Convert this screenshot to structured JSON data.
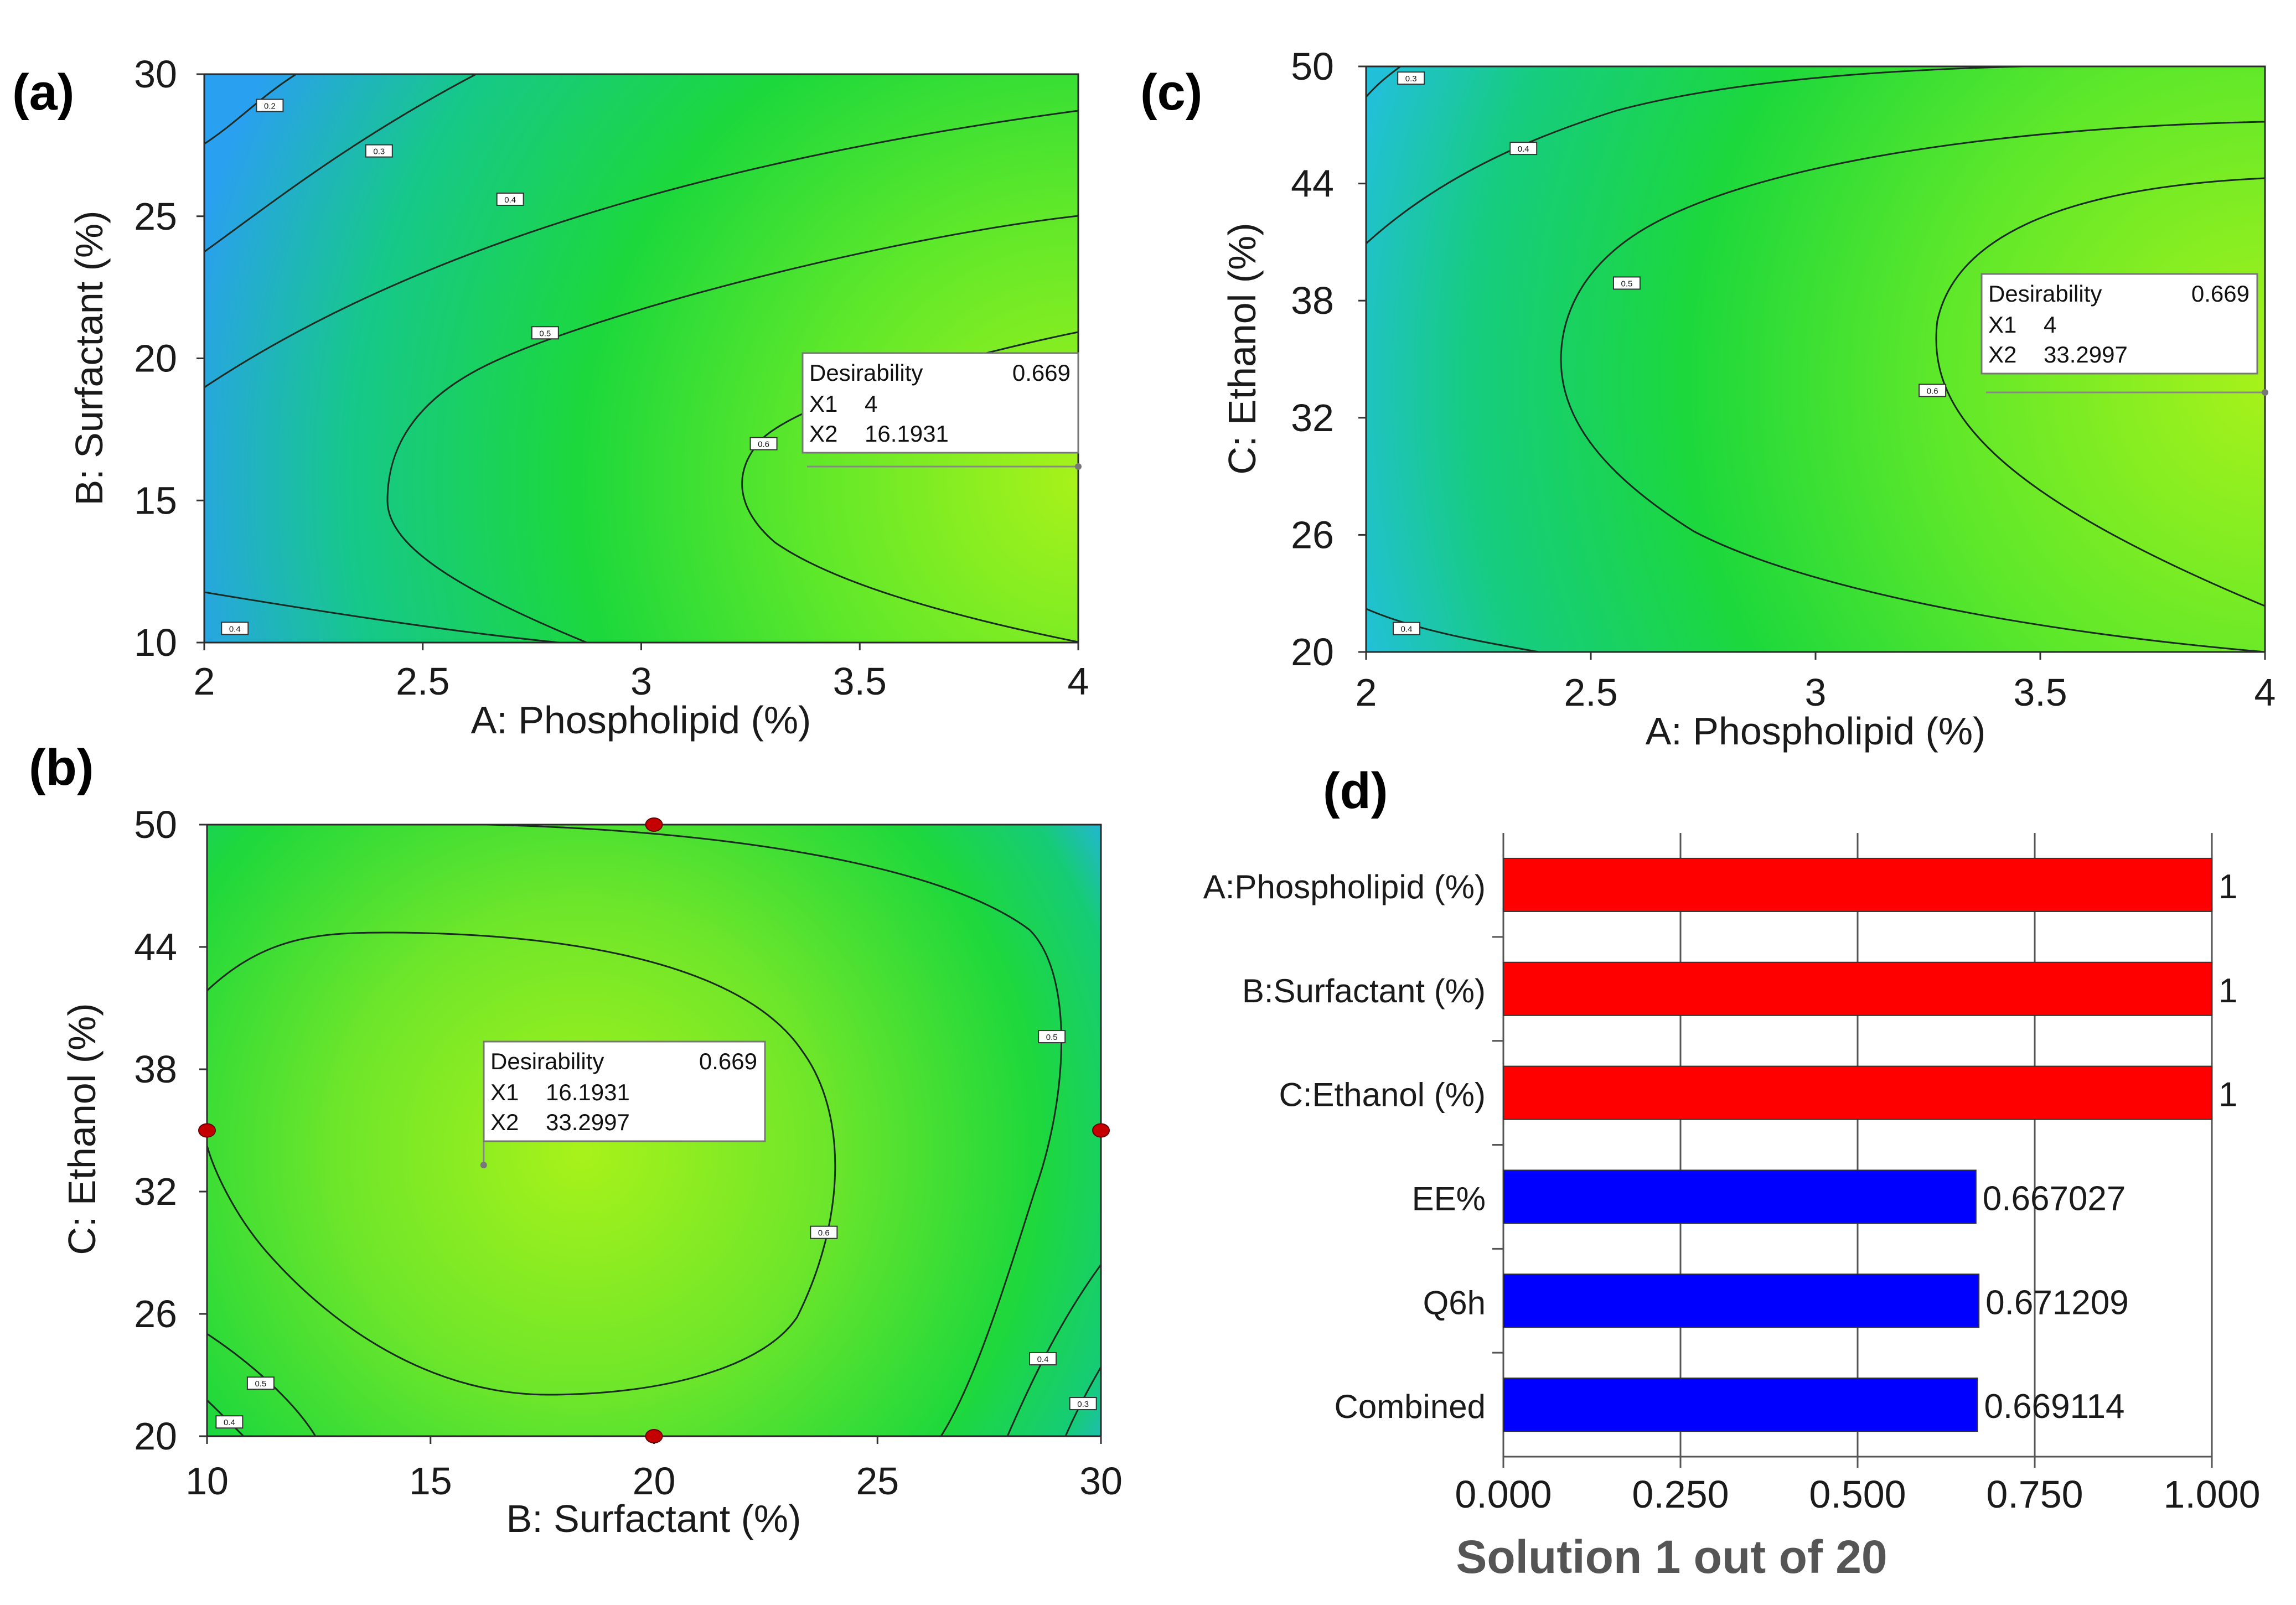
{
  "chart_data": [
    {
      "id": "a",
      "panel_label": "(a)",
      "type": "contour",
      "xlabel": "A: Phospholipid (%)",
      "ylabel": "B: Surfactant (%)",
      "xlim": [
        2,
        4
      ],
      "ylim": [
        10,
        30
      ],
      "xticks": [
        "2",
        "2.5",
        "3",
        "3.5",
        "4"
      ],
      "yticks": [
        "10",
        "15",
        "20",
        "25",
        "30"
      ],
      "contour_labels": [
        {
          "text": "0.2",
          "x": 2.15,
          "y": 28.9
        },
        {
          "text": "0.3",
          "x": 2.4,
          "y": 27.3
        },
        {
          "text": "0.4",
          "x": 2.7,
          "y": 25.6
        },
        {
          "text": "0.5",
          "x": 2.78,
          "y": 20.9
        },
        {
          "text": "0.6",
          "x": 3.28,
          "y": 17.0
        },
        {
          "text": "0.4",
          "x": 2.07,
          "y": 10.5
        }
      ],
      "annotation": {
        "title": "Desirability",
        "value": "0.669",
        "x1_label": "X1",
        "x1": "4",
        "x2_label": "X2",
        "x2": "16.1931",
        "point_x": 4,
        "point_y": 16.1931
      }
    },
    {
      "id": "b",
      "panel_label": "(b)",
      "type": "contour",
      "xlabel": "B: Surfactant (%)",
      "ylabel": "C: Ethanol (%)",
      "xlim": [
        10,
        30
      ],
      "ylim": [
        20,
        50
      ],
      "xticks": [
        "10",
        "15",
        "20",
        "25",
        "30"
      ],
      "yticks": [
        "20",
        "26",
        "32",
        "38",
        "44",
        "50"
      ],
      "contour_labels": [
        {
          "text": "0.5",
          "x": 28.9,
          "y": 39.6
        },
        {
          "text": "0.6",
          "x": 23.8,
          "y": 30.0
        },
        {
          "text": "0.5",
          "x": 11.2,
          "y": 22.6
        },
        {
          "text": "0.4",
          "x": 10.5,
          "y": 20.7
        },
        {
          "text": "0.4",
          "x": 28.7,
          "y": 23.8
        },
        {
          "text": "0.3",
          "x": 29.6,
          "y": 21.6
        }
      ],
      "design_points": [
        {
          "x": 20,
          "y": 50
        },
        {
          "x": 10,
          "y": 35
        },
        {
          "x": 30,
          "y": 35
        },
        {
          "x": 20,
          "y": 20
        }
      ],
      "annotation": {
        "title": "Desirability",
        "value": "0.669",
        "x1_label": "X1",
        "x1": "16.1931",
        "x2_label": "X2",
        "x2": "33.2997",
        "point_x": 16.19,
        "point_y": 33.3
      }
    },
    {
      "id": "c",
      "panel_label": "(c)",
      "type": "contour",
      "xlabel": "A: Phospholipid (%)",
      "ylabel": "C: Ethanol (%)",
      "xlim": [
        2,
        4
      ],
      "ylim": [
        20,
        50
      ],
      "xticks": [
        "2",
        "2.5",
        "3",
        "3.5",
        "4"
      ],
      "yticks": [
        "20",
        "26",
        "32",
        "38",
        "44",
        "50"
      ],
      "contour_labels": [
        {
          "text": "0.3",
          "x": 2.1,
          "y": 49.4
        },
        {
          "text": "0.4",
          "x": 2.35,
          "y": 45.8
        },
        {
          "text": "0.5",
          "x": 2.58,
          "y": 38.9
        },
        {
          "text": "0.6",
          "x": 3.26,
          "y": 33.4
        },
        {
          "text": "0.4",
          "x": 2.09,
          "y": 21.2
        }
      ],
      "annotation": {
        "title": "Desirability",
        "value": "0.669",
        "x1_label": "X1",
        "x1": "4",
        "x2_label": "X2",
        "x2": "33.2997",
        "point_x": 4,
        "point_y": 33.3
      }
    },
    {
      "id": "d",
      "panel_label": "(d)",
      "type": "bar",
      "orientation": "horizontal",
      "categories": [
        "A:Phospholipid (%)",
        "B:Surfactant (%)",
        "C:Ethanol (%)",
        "EE%",
        "Q6h",
        "Combined"
      ],
      "values": [
        1,
        1,
        1,
        0.667027,
        0.671209,
        0.669114
      ],
      "value_labels": [
        "1",
        "1",
        "1",
        "0.667027",
        "0.671209",
        "0.669114"
      ],
      "colors": [
        "#ff0000",
        "#ff0000",
        "#ff0000",
        "#0000ff",
        "#0000ff",
        "#0000ff"
      ],
      "xlim": [
        0,
        1
      ],
      "xticks": [
        "0.000",
        "0.250",
        "0.500",
        "0.750",
        "1.000"
      ],
      "xlabel": "Solution 1 out of 20",
      "grid": true
    }
  ],
  "colors": {
    "surface_low": "#2ba8f0",
    "surface_mid": "#19d93c",
    "surface_high": "#a8f21a",
    "contour_line": "#1a2b22",
    "design_point": "#c40000",
    "xlabel_d": "#555555"
  }
}
